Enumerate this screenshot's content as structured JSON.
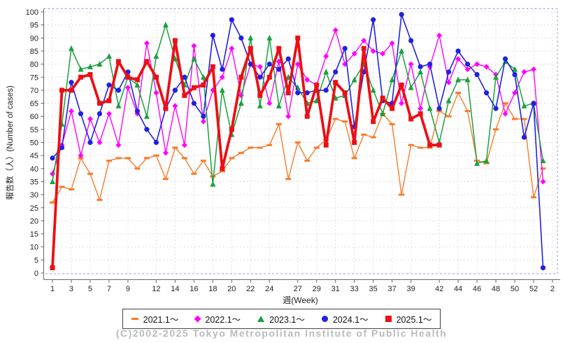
{
  "footer": {
    "text": "(C)2002-2025 Tokyo Metropolitan Institute of Public Health"
  },
  "chart_data": {
    "type": "line",
    "title": "",
    "x_label": "週(Week)",
    "y_label": "報告数（人）(Number of cases)",
    "ylim": [
      0,
      100
    ],
    "y_tick_step": 5,
    "weeks_shown": 53,
    "grid": true,
    "legend_position": "bottom",
    "x_ticks": [
      {
        "week": 1,
        "label": "1"
      },
      {
        "week": 3,
        "label": "3"
      },
      {
        "week": 5,
        "label": "5"
      },
      {
        "week": 7,
        "label": "7"
      },
      {
        "week": 9,
        "label": "9"
      },
      {
        "week": 12,
        "label": "12"
      },
      {
        "week": 14,
        "label": "14"
      },
      {
        "week": 16,
        "label": "16"
      },
      {
        "week": 18,
        "label": "18"
      },
      {
        "week": 20,
        "label": "20"
      },
      {
        "week": 22,
        "label": "22"
      },
      {
        "week": 24,
        "label": "24"
      },
      {
        "week": 27,
        "label": "27"
      },
      {
        "week": 29,
        "label": "29"
      },
      {
        "week": 31,
        "label": "31"
      },
      {
        "week": 33,
        "label": "33"
      },
      {
        "week": 35,
        "label": "35"
      },
      {
        "week": 37,
        "label": "37"
      },
      {
        "week": 39,
        "label": "39"
      },
      {
        "week": 42,
        "label": "42"
      },
      {
        "week": 44,
        "label": "44"
      },
      {
        "week": 46,
        "label": "46"
      },
      {
        "week": 48,
        "label": "48"
      },
      {
        "week": 50,
        "label": "50"
      },
      {
        "week": 52,
        "label": "52"
      },
      {
        "week": 54,
        "label": "2"
      }
    ],
    "series": [
      {
        "name": "2021.1～",
        "color": "#f97b2a",
        "marker": "hbar",
        "line_width": 1.4,
        "values": [
          27,
          33,
          32,
          44,
          38,
          28,
          43,
          44,
          44,
          40,
          44,
          45,
          36,
          48,
          44,
          38,
          43,
          37,
          39,
          44,
          46,
          48,
          48,
          49,
          57,
          36,
          50,
          43,
          48,
          51,
          59,
          58,
          44,
          53,
          52,
          61,
          57,
          30,
          49,
          48,
          48,
          62,
          60,
          69,
          62,
          43,
          42,
          55,
          65,
          59,
          59,
          29,
          40
        ]
      },
      {
        "name": "2022.1～",
        "color": "#ff00ff",
        "marker": "diamond",
        "line_width": 1.4,
        "values": [
          38,
          49,
          62,
          45,
          59,
          50,
          61,
          49,
          71,
          61,
          88,
          69,
          46,
          64,
          49,
          87,
          58,
          70,
          75,
          86,
          68,
          80,
          79,
          65,
          81,
          60,
          80,
          74,
          72,
          83,
          93,
          80,
          84,
          89,
          85,
          84,
          88,
          65,
          80,
          63,
          79,
          91,
          73,
          82,
          78,
          80,
          79,
          76,
          61,
          69,
          77,
          78,
          35
        ]
      },
      {
        "name": "2023.1～",
        "color": "#18a13d",
        "marker": "triangle",
        "line_width": 1.5,
        "values": [
          35,
          57,
          86,
          78,
          79,
          80,
          83,
          64,
          75,
          72,
          60,
          83,
          95,
          82,
          72,
          82,
          75,
          34,
          70,
          53,
          65,
          90,
          64,
          90,
          64,
          75,
          71,
          65,
          66,
          77,
          67,
          68,
          74,
          80,
          70,
          61,
          74,
          85,
          71,
          77,
          63,
          50,
          66,
          74,
          74,
          42,
          43,
          75,
          81,
          78,
          64,
          65,
          43
        ]
      },
      {
        "name": "2024.1～",
        "color": "#2121e0",
        "marker": "circle",
        "line_width": 1.6,
        "values": [
          44,
          48,
          73,
          61,
          50,
          61,
          72,
          70,
          77,
          62,
          55,
          50,
          63,
          70,
          75,
          65,
          60,
          91,
          78,
          97,
          90,
          80,
          75,
          80,
          78,
          82,
          69,
          69,
          70,
          70,
          77,
          86,
          56,
          77,
          97,
          66,
          65,
          99,
          89,
          79,
          80,
          63,
          77,
          85,
          80,
          76,
          69,
          63,
          82,
          76,
          52,
          65,
          2
        ]
      },
      {
        "name": "2025.1～",
        "color": "#ec0f16",
        "marker": "square",
        "line_width": 3.8,
        "values": [
          2,
          70,
          70,
          75,
          76,
          65,
          66,
          81,
          75,
          74,
          81,
          75,
          63,
          89,
          68,
          71,
          72,
          79,
          40,
          55,
          75,
          86,
          68,
          75,
          86,
          69,
          90,
          60,
          72,
          49,
          73,
          69,
          50,
          86,
          58,
          67,
          63,
          72,
          59,
          61,
          49,
          49,
          null,
          null,
          null,
          null,
          null,
          null,
          null,
          null,
          null,
          null,
          null
        ]
      }
    ]
  }
}
